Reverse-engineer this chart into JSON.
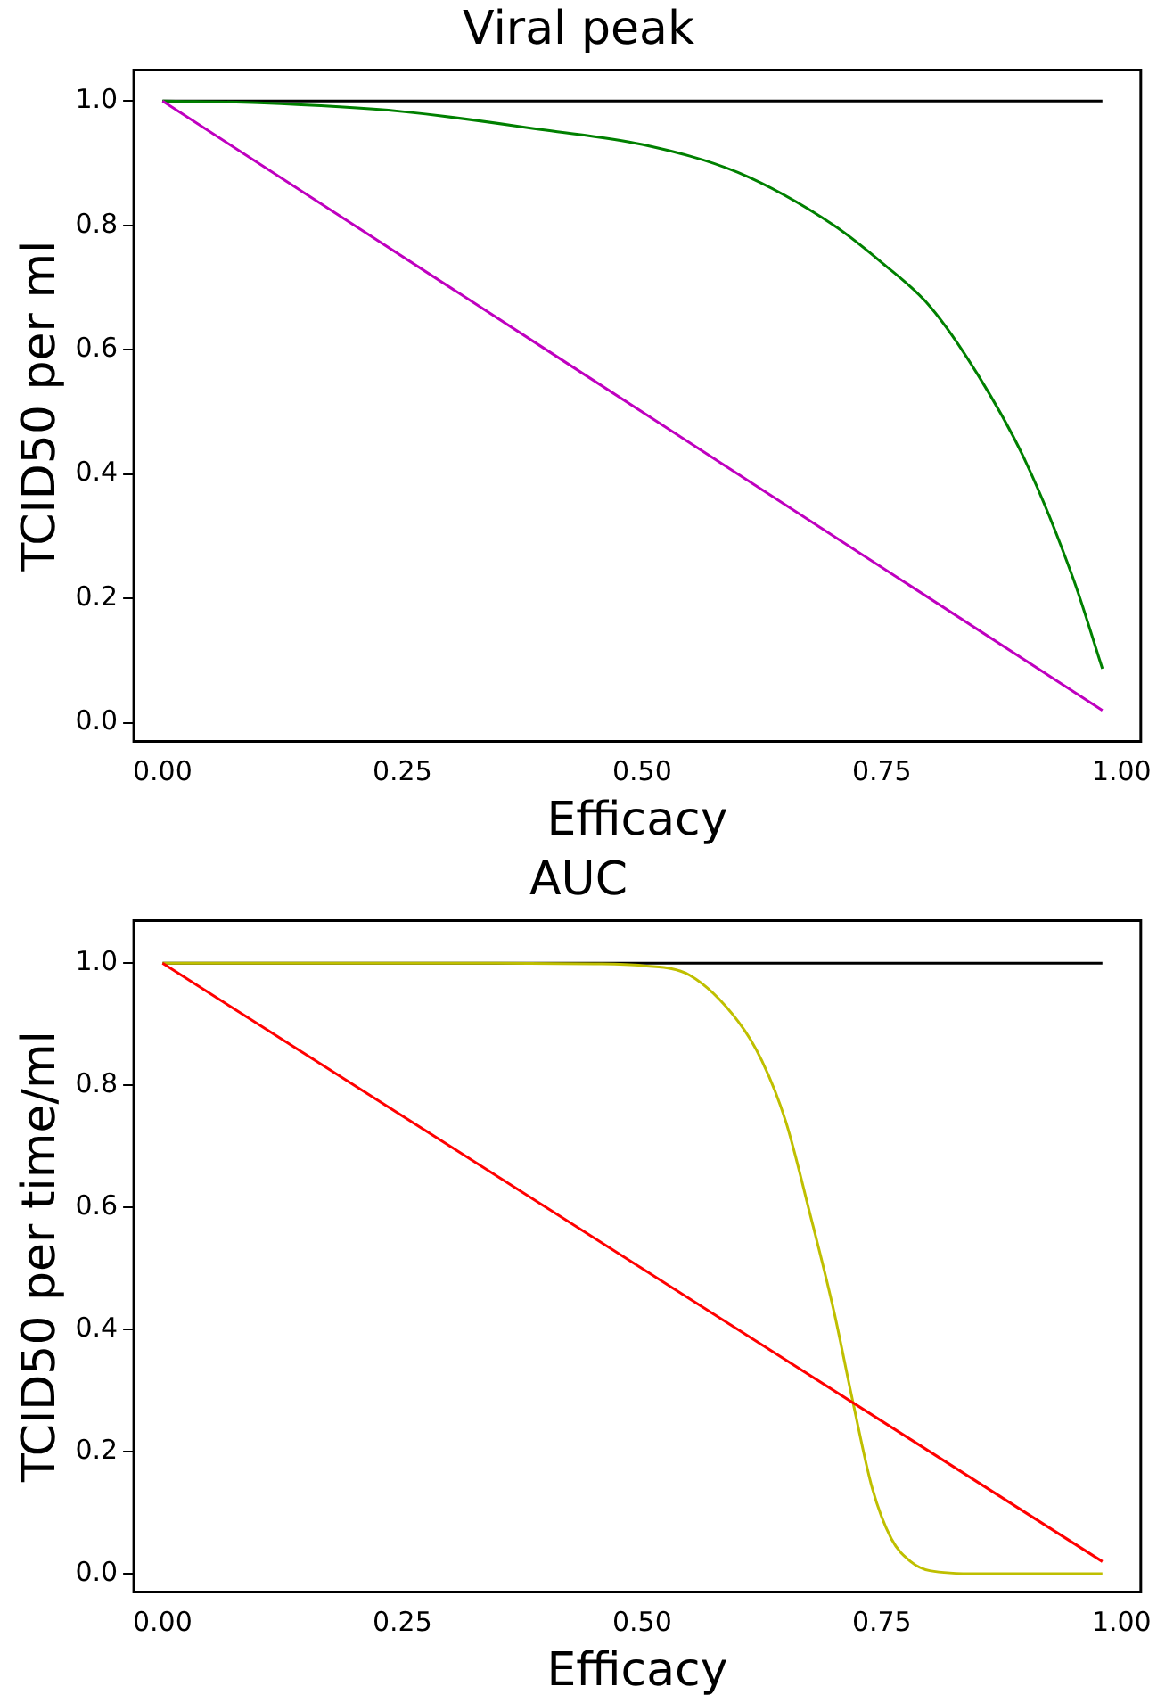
{
  "chart_data": [
    {
      "type": "line",
      "title": "Viral peak",
      "xlabel": "Efficacy",
      "ylabel": "TCID50 per ml",
      "xlim": [
        -0.03,
        1.02
      ],
      "ylim": [
        -0.03,
        1.05
      ],
      "xticks": [
        {
          "value": 0,
          "label": "0.00"
        },
        {
          "value": 0.25,
          "label": "0.25"
        },
        {
          "value": 0.5,
          "label": "0.50"
        },
        {
          "value": 0.75,
          "label": "0.75"
        },
        {
          "value": 1,
          "label": "1.00"
        }
      ],
      "yticks": [
        {
          "value": 0,
          "label": "0.0"
        },
        {
          "value": 0.2,
          "label": "0.2"
        },
        {
          "value": 0.4,
          "label": "0.4"
        },
        {
          "value": 0.6,
          "label": "0.6"
        },
        {
          "value": 0.8,
          "label": "0.8"
        },
        {
          "value": 1,
          "label": "1.0"
        }
      ],
      "grid": false,
      "legend": false,
      "marker": "none",
      "line_style": "solid",
      "series": [
        {
          "color": "#000000",
          "x": [
            0,
            0.98
          ],
          "values": [
            1,
            1
          ]
        },
        {
          "color": "#008000",
          "x": [
            0,
            0.1,
            0.25,
            0.4,
            0.5,
            0.6,
            0.7,
            0.75,
            0.8,
            0.85,
            0.9,
            0.95,
            0.98
          ],
          "values": [
            1,
            0.997,
            0.983,
            0.953,
            0.93,
            0.885,
            0.8,
            0.74,
            0.67,
            0.56,
            0.42,
            0.23,
            0.087
          ]
        },
        {
          "color": "#bf00bf",
          "x": [
            0,
            0.98
          ],
          "values": [
            1,
            0.02
          ]
        }
      ]
    },
    {
      "type": "line",
      "title": "AUC",
      "xlabel": "Efficacy",
      "ylabel": "TCID50 per time/ml",
      "xlim": [
        -0.03,
        1.02
      ],
      "ylim": [
        -0.03,
        1.07
      ],
      "xticks": [
        {
          "value": 0,
          "label": "0.00"
        },
        {
          "value": 0.25,
          "label": "0.25"
        },
        {
          "value": 0.5,
          "label": "0.50"
        },
        {
          "value": 0.75,
          "label": "0.75"
        },
        {
          "value": 1,
          "label": "1.00"
        }
      ],
      "yticks": [
        {
          "value": 0,
          "label": "0.0"
        },
        {
          "value": 0.2,
          "label": "0.2"
        },
        {
          "value": 0.4,
          "label": "0.4"
        },
        {
          "value": 0.6,
          "label": "0.6"
        },
        {
          "value": 0.8,
          "label": "0.8"
        },
        {
          "value": 1,
          "label": "1.0"
        }
      ],
      "grid": false,
      "legend": false,
      "marker": "none",
      "line_style": "solid",
      "series": [
        {
          "color": "#000000",
          "x": [
            0,
            0.98
          ],
          "values": [
            1,
            1
          ]
        },
        {
          "color": "#bfbf00",
          "x": [
            0,
            0.3,
            0.45,
            0.5,
            0.55,
            0.6,
            0.625,
            0.65,
            0.675,
            0.7,
            0.72,
            0.74,
            0.76,
            0.78,
            0.8,
            0.85,
            0.98
          ],
          "values": [
            1,
            1,
            0.999,
            0.996,
            0.98,
            0.905,
            0.84,
            0.74,
            0.59,
            0.43,
            0.28,
            0.14,
            0.057,
            0.02,
            0.005,
            0,
            0
          ]
        },
        {
          "color": "#ff0000",
          "x": [
            0,
            0.98
          ],
          "values": [
            1,
            0.02
          ]
        }
      ]
    }
  ]
}
